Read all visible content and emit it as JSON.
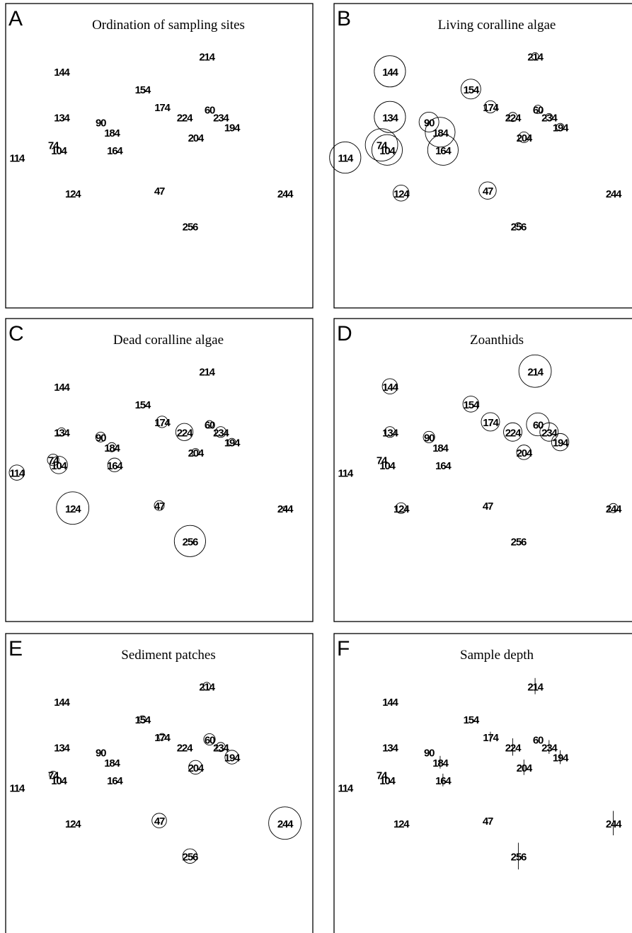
{
  "figure": {
    "sites": [
      "214",
      "144",
      "154",
      "174",
      "60",
      "224",
      "234",
      "134",
      "90",
      "194",
      "184",
      "204",
      "74",
      "104",
      "164",
      "114",
      "124",
      "47",
      "244",
      "256"
    ],
    "ordination": {
      "214": [
        0.62,
        0.79
      ],
      "144": [
        0.1,
        0.73
      ],
      "154": [
        0.39,
        0.66
      ],
      "174": [
        0.46,
        0.59
      ],
      "60": [
        0.63,
        0.58
      ],
      "224": [
        0.54,
        0.55
      ],
      "234": [
        0.67,
        0.55
      ],
      "134": [
        0.1,
        0.55
      ],
      "90": [
        0.24,
        0.53
      ],
      "194": [
        0.71,
        0.51
      ],
      "184": [
        0.28,
        0.49
      ],
      "204": [
        0.58,
        0.47
      ],
      "74": [
        0.07,
        0.44
      ],
      "104": [
        0.09,
        0.42
      ],
      "164": [
        0.29,
        0.42
      ],
      "114": [
        -0.06,
        0.39
      ],
      "124": [
        0.14,
        0.25
      ],
      "47": [
        0.45,
        0.26
      ],
      "244": [
        0.9,
        0.25
      ],
      "256": [
        0.56,
        0.12
      ]
    }
  },
  "chart_data": [
    {
      "type": "scatter",
      "panel": "A",
      "title": "Ordination of sampling sites",
      "xlim": [
        -0.1,
        1.0
      ],
      "ylim": [
        -0.2,
        1.0
      ],
      "bubble_values": {}
    },
    {
      "type": "scatter",
      "panel": "B",
      "title": "Living coralline algae",
      "xlim": [
        -0.1,
        1.0
      ],
      "ylim": [
        -0.2,
        1.0
      ],
      "bubble_values": {
        "214": 0.18,
        "144": 0.82,
        "154": 0.52,
        "174": 0.32,
        "60": 0.22,
        "224": 0.24,
        "234": 0.18,
        "134": 0.82,
        "90": 0.52,
        "194": 0.2,
        "184": 0.78,
        "204": 0.28,
        "74": 0.85,
        "104": 0.8,
        "164": 0.8,
        "114": 0.82,
        "124": 0.42,
        "47": 0.45,
        "244": 0.0,
        "256": 0.18
      }
    },
    {
      "type": "scatter",
      "panel": "C",
      "title": "Dead coralline algae",
      "xlim": [
        -0.1,
        1.0
      ],
      "ylim": [
        -0.2,
        1.0
      ],
      "bubble_values": {
        "214": 0.0,
        "144": 0.0,
        "154": 0.0,
        "174": 0.3,
        "60": 0.2,
        "224": 0.45,
        "234": 0.28,
        "134": 0.22,
        "90": 0.26,
        "194": 0.2,
        "184": 0.24,
        "204": 0.2,
        "74": 0.3,
        "104": 0.46,
        "164": 0.36,
        "114": 0.4,
        "124": 0.85,
        "47": 0.26,
        "244": 0.1,
        "256": 0.82
      }
    },
    {
      "type": "scatter",
      "panel": "D",
      "title": "Zoanthids",
      "xlim": [
        -0.1,
        1.0
      ],
      "ylim": [
        -0.2,
        1.0
      ],
      "bubble_values": {
        "214": 0.85,
        "144": 0.4,
        "154": 0.42,
        "174": 0.48,
        "60": 0.6,
        "224": 0.48,
        "234": 0.48,
        "134": 0.28,
        "90": 0.3,
        "194": 0.45,
        "184": 0.0,
        "204": 0.38,
        "74": 0.0,
        "104": 0.0,
        "164": 0.0,
        "114": 0.0,
        "124": 0.28,
        "47": 0.0,
        "244": 0.24,
        "256": 0.0
      }
    },
    {
      "type": "scatter",
      "panel": "E",
      "title": "Sediment patches",
      "xlim": [
        -0.1,
        1.0
      ],
      "ylim": [
        -0.2,
        1.0
      ],
      "bubble_values": {
        "214": 0.2,
        "144": 0.0,
        "154": 0.18,
        "174": 0.18,
        "60": 0.3,
        "224": 0.0,
        "234": 0.24,
        "134": 0.0,
        "90": 0.0,
        "194": 0.36,
        "184": 0.0,
        "204": 0.36,
        "74": 0.2,
        "104": 0.0,
        "164": 0.0,
        "114": 0.0,
        "124": 0.0,
        "47": 0.38,
        "244": 0.85,
        "256": 0.38
      }
    },
    {
      "type": "scatter",
      "panel": "F",
      "title": "Sample depth",
      "xlim": [
        -0.1,
        1.0
      ],
      "ylim": [
        -0.2,
        1.0
      ],
      "vector_values": {
        "214": 0.45,
        "144": 0.0,
        "154": 0.0,
        "174": 0.2,
        "60": 0.0,
        "224": 0.5,
        "234": 0.35,
        "134": 0.0,
        "90": 0.0,
        "194": 0.35,
        "184": 0.3,
        "204": 0.42,
        "74": 0.0,
        "104": 0.0,
        "164": 0.3,
        "114": 0.0,
        "124": 0.0,
        "47": 0.0,
        "244": 0.8,
        "256": 0.9
      }
    }
  ]
}
